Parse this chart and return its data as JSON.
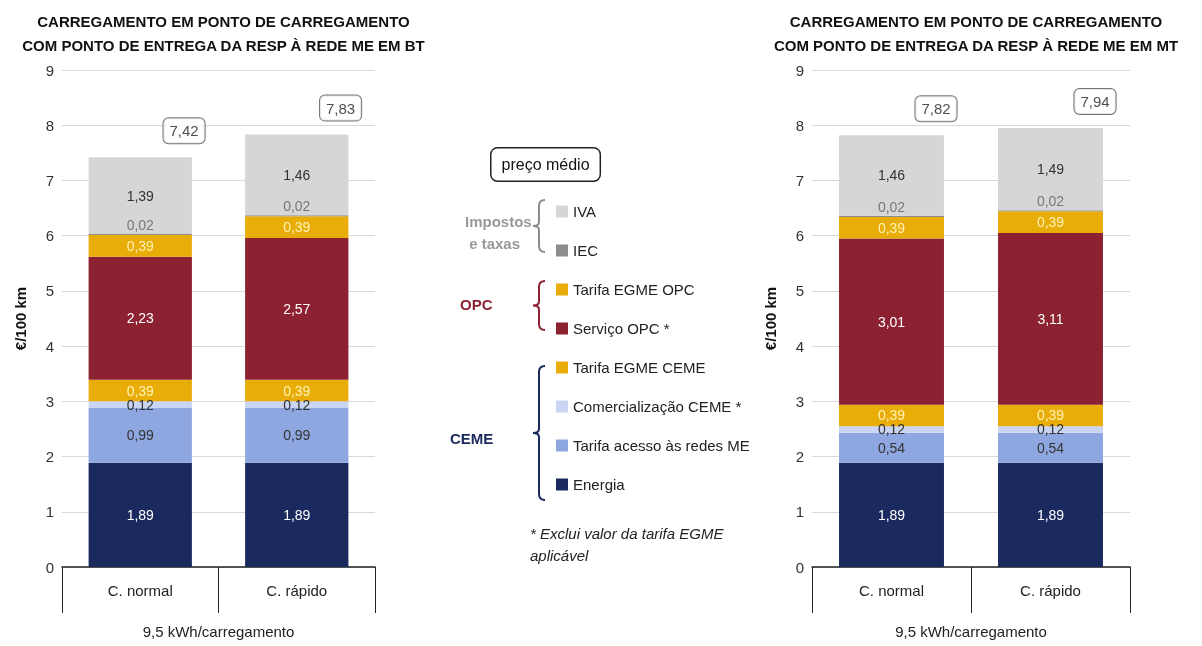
{
  "chart_data": [
    {
      "type": "bar",
      "stacked": true,
      "title": "CARREGAMENTO EM PONTO DE CARREGAMENTO\nCOM PONTO DE ENTREGA DA RESP À REDE ME EM BT",
      "categories": [
        "C. normal",
        "C. rápido"
      ],
      "xlabel": "9,5 kWh/carregamento",
      "ylabel": "€/100 km",
      "ylim": [
        0,
        9
      ],
      "yticks": [
        0,
        1,
        2,
        3,
        4,
        5,
        6,
        7,
        8,
        9
      ],
      "grid": "y",
      "legend": "right",
      "legend_title": "preço médio",
      "totals": [
        "7,42",
        "7,83"
      ],
      "annotations": [
        "Impostos e taxas",
        "OPC",
        "CEME",
        "* Exclui valor da tarifa EGME aplicável"
      ],
      "series": [
        {
          "name": "Energia",
          "color": "#1b2a5e",
          "values": [
            1.89,
            1.89
          ],
          "value_labels": [
            "1,89",
            "1,89"
          ]
        },
        {
          "name": "Tarifa acesso às redes ME",
          "color": "#8fa7e0",
          "values": [
            0.99,
            0.99
          ],
          "value_labels": [
            "0,99",
            "0,99"
          ]
        },
        {
          "name": "Comercialização CEME *",
          "color": "#c9d5f2",
          "values": [
            0.12,
            0.12
          ],
          "value_labels": [
            "0,12",
            "0,12"
          ]
        },
        {
          "name": "Tarifa EGME CEME",
          "color": "#e8ad08",
          "values": [
            0.39,
            0.39
          ],
          "value_labels": [
            "0,39",
            "0,39"
          ]
        },
        {
          "name": "Serviço OPC *",
          "color": "#8b2131",
          "values": [
            2.23,
            2.57
          ],
          "value_labels": [
            "2,23",
            "2,57"
          ]
        },
        {
          "name": "Tarifa EGME OPC",
          "color": "#e8ad08",
          "values": [
            0.39,
            0.39
          ],
          "value_labels": [
            "0,39",
            "0,39"
          ]
        },
        {
          "name": "IEC",
          "color": "#8c8c8c",
          "values": [
            0.02,
            0.02
          ],
          "value_labels": [
            "0,02",
            "0,02"
          ]
        },
        {
          "name": "IVA",
          "color": "#d6d6d6",
          "values": [
            1.39,
            1.46
          ],
          "value_labels": [
            "1,39",
            "1,46"
          ]
        }
      ]
    },
    {
      "type": "bar",
      "stacked": true,
      "title": "CARREGAMENTO EM PONTO DE CARREGAMENTO\nCOM PONTO DE ENTREGA DA RESP À REDE ME EM MT",
      "categories": [
        "C. normal",
        "C. rápido"
      ],
      "xlabel": "9,5 kWh/carregamento",
      "ylabel": "€/100 km",
      "ylim": [
        0,
        9
      ],
      "yticks": [
        0,
        1,
        2,
        3,
        4,
        5,
        6,
        7,
        8,
        9
      ],
      "grid": "y",
      "totals": [
        "7,82",
        "7,94"
      ],
      "series": [
        {
          "color": "#1b2a5e",
          "values": [
            1.89,
            1.89
          ],
          "value_labels": [
            "1,89",
            "1,89"
          ]
        },
        {
          "color": "#8fa7e0",
          "values": [
            0.54,
            0.54
          ],
          "value_labels": [
            "0,54",
            "0,54"
          ]
        },
        {
          "color": "#c9d5f2",
          "values": [
            0.12,
            0.12
          ],
          "value_labels": [
            "0,12",
            "0,12"
          ]
        },
        {
          "color": "#e8ad08",
          "values": [
            0.39,
            0.39
          ],
          "value_labels": [
            "0,39",
            "0,39"
          ]
        },
        {
          "color": "#8b2131",
          "values": [
            3.01,
            3.11
          ],
          "value_labels": [
            "3,01",
            "3,11"
          ]
        },
        {
          "color": "#e8ad08",
          "values": [
            0.39,
            0.39
          ],
          "value_labels": [
            "0,39",
            "0,39"
          ]
        },
        {
          "color": "#8c8c8c",
          "values": [
            0.02,
            0.02
          ],
          "value_labels": [
            "0,02",
            "0,02"
          ]
        },
        {
          "color": "#d6d6d6",
          "values": [
            1.46,
            1.49
          ],
          "value_labels": [
            "1,46",
            "1,49"
          ]
        }
      ]
    }
  ]
}
